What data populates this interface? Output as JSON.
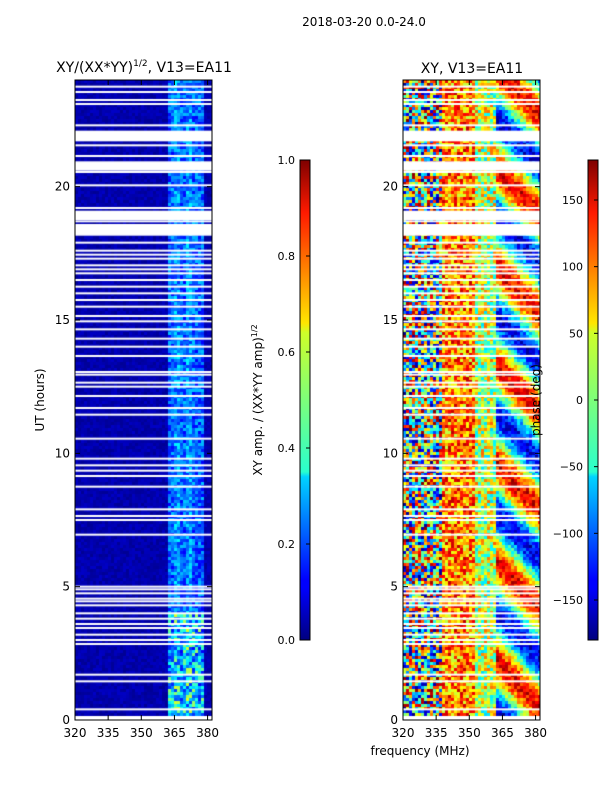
{
  "figure": {
    "suptitle": "2018-03-20 0.0-24.0"
  },
  "chart_data": [
    {
      "type": "heatmap",
      "title_main": "XY/(XX*YY)",
      "title_exp": "1/2",
      "title_rest": ", V13=EA11",
      "ylabel": "UT (hours)",
      "xlabel": "",
      "xlim": [
        320,
        382
      ],
      "ylim": [
        0,
        24
      ],
      "x_ticks": [
        320,
        335,
        350,
        365,
        380
      ],
      "y_ticks": [
        0,
        5,
        10,
        15,
        20
      ],
      "colorbar": {
        "label_main": "XY amp. / (XX*YY amp)",
        "label_exp": "1/2",
        "range": [
          0.0,
          1.0
        ],
        "ticks": [
          "0.0",
          "0.2",
          "0.4",
          "0.6",
          "0.8",
          "1.0"
        ]
      },
      "gap_rows_ut": [
        0.4,
        1.45,
        1.7,
        2.85,
        3.0,
        3.2,
        3.45,
        3.6,
        3.8,
        4.0,
        4.3,
        4.45,
        4.55,
        4.75,
        4.9,
        5.0,
        6.95,
        7.5,
        7.65,
        7.9,
        8.75,
        9.15,
        9.35,
        9.55,
        9.8,
        10.55,
        11.45,
        11.7,
        12.15,
        12.5,
        12.65,
        12.95,
        13.05,
        13.65,
        14.0,
        14.3,
        14.65,
        14.95,
        15.15,
        15.5,
        15.75,
        16.0,
        16.25,
        16.5,
        16.75,
        16.9,
        17.05,
        17.3,
        17.45,
        17.6,
        17.9,
        18.2,
        18.7,
        19.2,
        20.05,
        20.55,
        21.15,
        21.55,
        22.05,
        22.3,
        23.1,
        23.25,
        23.55,
        23.75
      ],
      "gap_bands_ut": [
        [
          18.75,
          19.1
        ],
        [
          20.6,
          20.95
        ],
        [
          21.7,
          22.1
        ],
        [
          18.2,
          18.6
        ]
      ]
    },
    {
      "type": "heatmap",
      "title": "XY, V13=EA11",
      "ylabel": "",
      "xlabel": "frequency (MHz)",
      "xlim": [
        320,
        382
      ],
      "ylim": [
        0,
        24
      ],
      "x_ticks": [
        320,
        335,
        350,
        365,
        380
      ],
      "y_ticks": [
        0,
        5,
        10,
        15,
        20
      ],
      "colorbar": {
        "label": "phase (deg)",
        "range": [
          -180,
          180
        ],
        "ticks": [
          "−150",
          "−100",
          "−50",
          "0",
          "50",
          "100",
          "150"
        ]
      }
    }
  ]
}
